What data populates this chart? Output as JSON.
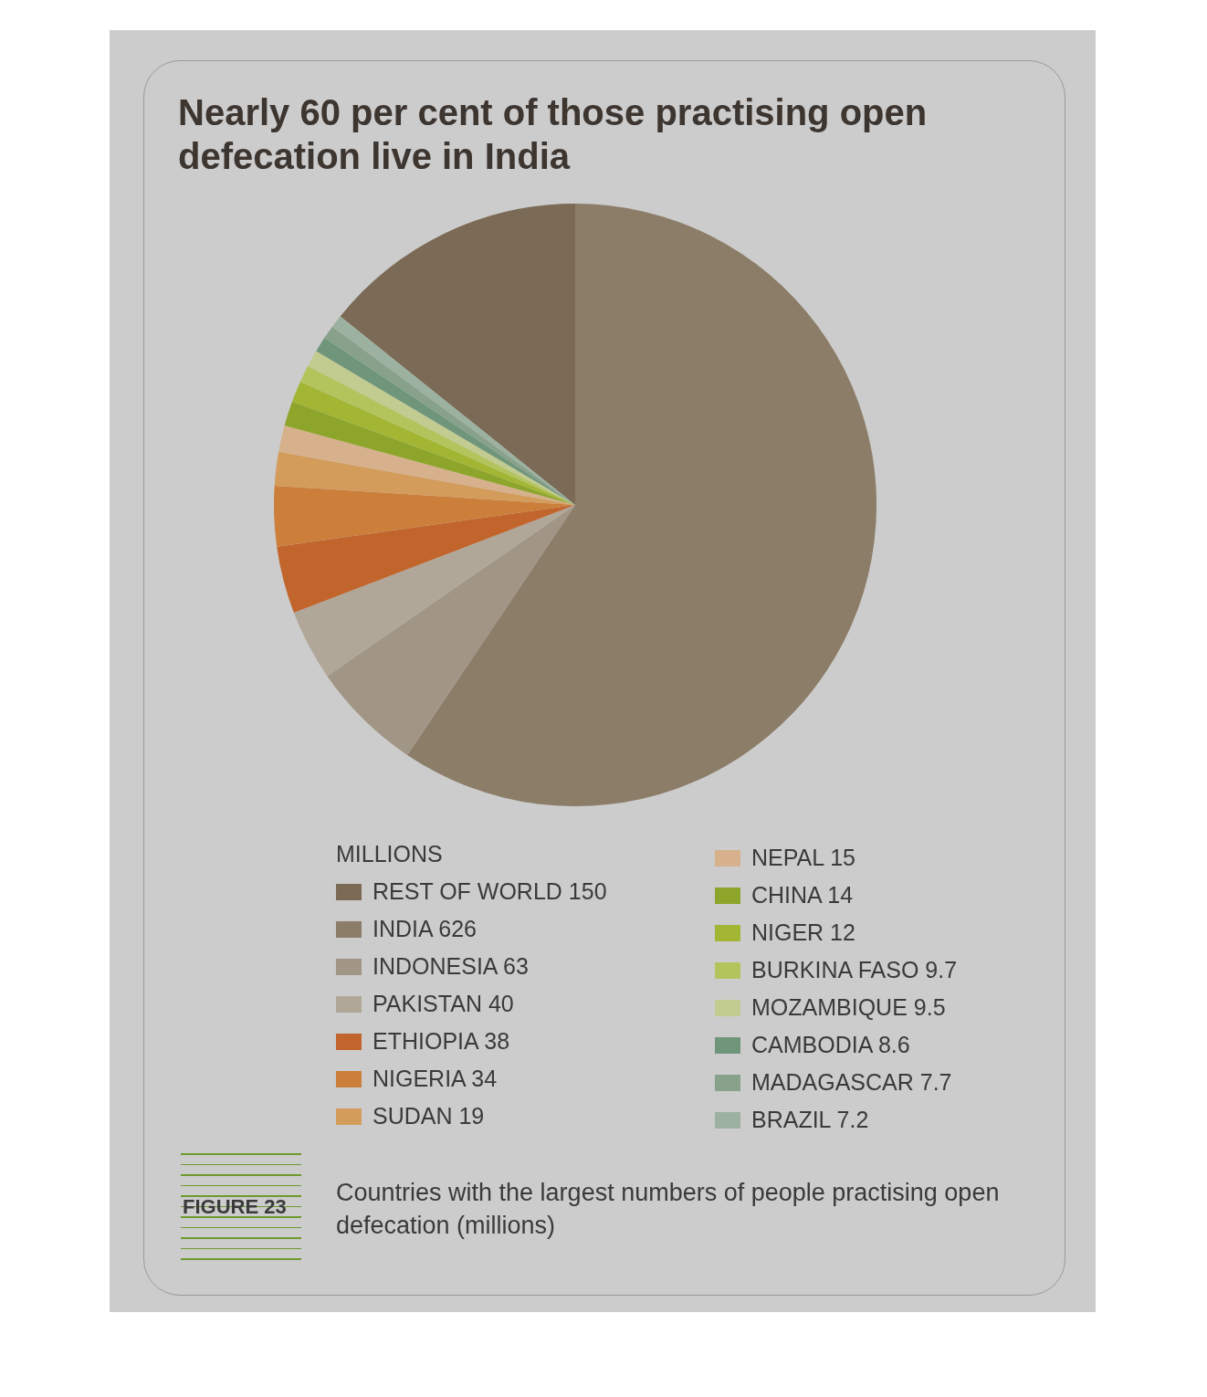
{
  "chart_data": {
    "type": "pie",
    "title": "Nearly 60 per cent of those practising open defecation live in India",
    "legend_title": "MILLIONS",
    "legend": "bottom",
    "categories": [
      "REST OF WORLD",
      "INDIA",
      "INDONESIA",
      "PAKISTAN",
      "ETHIOPIA",
      "NIGERIA",
      "SUDAN",
      "NEPAL",
      "CHINA",
      "NIGER",
      "BURKINA FASO",
      "MOZAMBIQUE",
      "CAMBODIA",
      "MADAGASCAR",
      "BRAZIL"
    ],
    "values": [
      150,
      626,
      63,
      40,
      38,
      34,
      19,
      15,
      14,
      12,
      9.7,
      9.5,
      8.6,
      7.7,
      7.2
    ],
    "value_labels": [
      "150",
      "626",
      "63",
      "40",
      "38",
      "34",
      "19",
      "15",
      "14",
      "12",
      "9.7",
      "9.5",
      "8.6",
      "7.7",
      "7.2"
    ],
    "colors": [
      "#7b6b56",
      "#8c7d68",
      "#a19585",
      "#b1a798",
      "#c1652d",
      "#cb7f3b",
      "#d39c5b",
      "#d6b18b",
      "#8ea52b",
      "#a2b634",
      "#b4c45d",
      "#c2cb90",
      "#6f957b",
      "#88a18b",
      "#9db1a0"
    ],
    "annotations": [
      "FIGURE 23",
      "Countries with the largest numbers of people practising open defecation (millions)"
    ]
  }
}
